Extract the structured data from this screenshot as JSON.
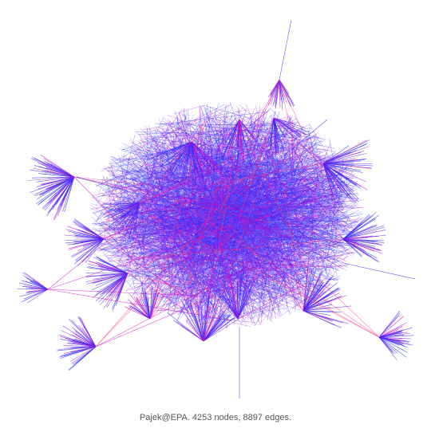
{
  "caption": "Pajek@EPA. 4253 nodes, 8897 edges.",
  "graph": {
    "nodes": 4253,
    "edges": 8897,
    "colors": {
      "blue": "#2a2aff",
      "violet": "#8a2be2",
      "magenta": "#d000c8",
      "pink": "#ff3a7a",
      "azure": "#3a7aff"
    }
  }
}
